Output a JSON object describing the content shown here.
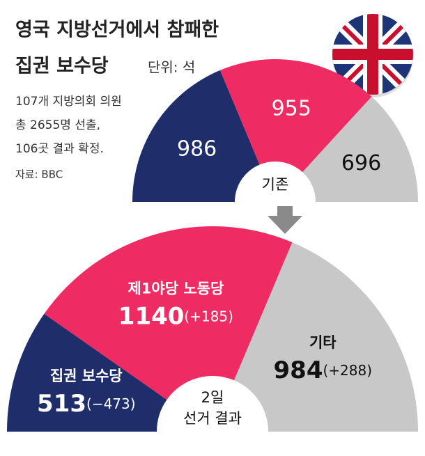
{
  "title": "영국 지방선거에서 참패한",
  "title_line2": "집권 보수당",
  "unit": "단위: 석",
  "notes": [
    "107개 지방의회 의원",
    "총 2655명 선출,",
    "106곳 결과 확정.",
    "자료: BBC"
  ],
  "chart_data": [
    {
      "type": "half-donut",
      "center_label": "기존",
      "values": [
        986,
        955,
        696
      ],
      "colors": [
        "#1f2d6b",
        "#ee2b62",
        "#c8c8c8"
      ]
    },
    {
      "type": "half-donut",
      "center_label": "2일",
      "center_label_line2": "선거 결과",
      "categories": [
        "집권 보수당",
        "제1야당 노동당",
        "기타"
      ],
      "values": [
        513,
        1140,
        984
      ],
      "change_labels": [
        "(−473)",
        "(+185)",
        "(+288)"
      ],
      "colors": [
        "#1f2d6b",
        "#ee2b62",
        "#c8c8c8"
      ]
    }
  ]
}
